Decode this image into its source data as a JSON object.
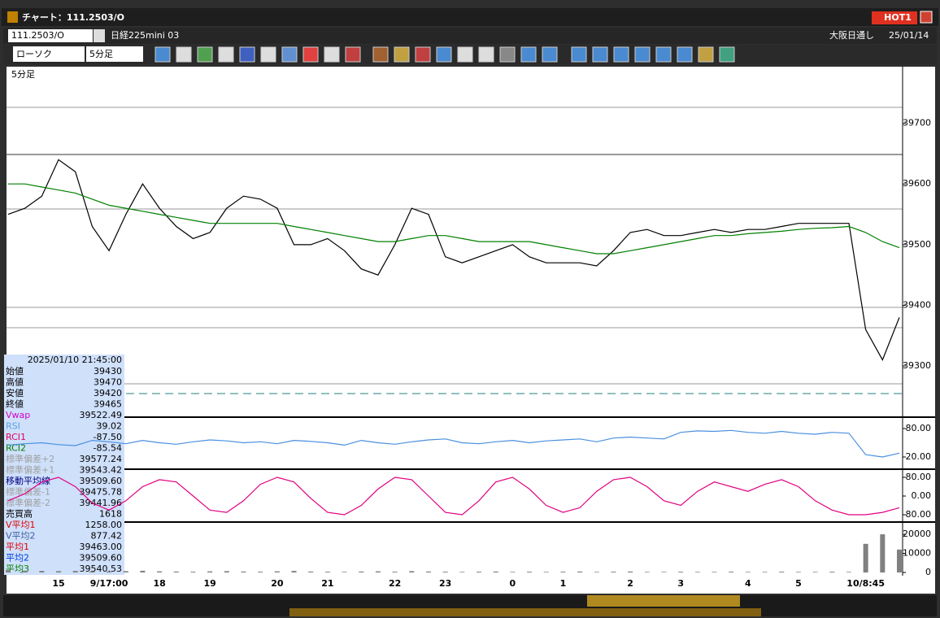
{
  "window": {
    "title": "チャート：111.2503/O",
    "hot": "HOT1"
  },
  "toolbar": {
    "symbol": "111.2503/O",
    "name": "日経225mini 03",
    "session": "大阪日通し",
    "date": "25/01/14",
    "chart_type": "ローソク",
    "interval": "5分足"
  },
  "info_panel": {
    "datetime": "2025/01/10 21:45:00",
    "rows": [
      {
        "label": "始値",
        "value": "39430",
        "color": "#000000"
      },
      {
        "label": "高値",
        "value": "39470",
        "color": "#000000"
      },
      {
        "label": "安値",
        "value": "39420",
        "color": "#000000"
      },
      {
        "label": "終値",
        "value": "39465",
        "color": "#000000"
      },
      {
        "label": "Vwap",
        "value": "39522.49",
        "color": "#d000d0"
      },
      {
        "label": "RSI",
        "value": "39.02",
        "color": "#5aa0e0"
      },
      {
        "label": "RCI1",
        "value": "-87.50",
        "color": "#e00060"
      },
      {
        "label": "RCI2",
        "value": "-85.54",
        "color": "#008000"
      },
      {
        "label": "標準偏差+2",
        "value": "39577.24",
        "color": "#a0a0a0"
      },
      {
        "label": "標準偏差+1",
        "value": "39543.42",
        "color": "#a0a0a0"
      },
      {
        "label": "移動平均線",
        "value": "39509.60",
        "color": "#000080"
      },
      {
        "label": "標準偏差-1",
        "value": "39475.78",
        "color": "#a0a0a0"
      },
      {
        "label": "標準偏差-2",
        "value": "39441.96",
        "color": "#a0a0a0"
      },
      {
        "label": "売買高",
        "value": "1618",
        "color": "#000000"
      },
      {
        "label": "V平均1",
        "value": "1258.00",
        "color": "#e00000"
      },
      {
        "label": "V平均2",
        "value": "877.42",
        "color": "#4060a0"
      },
      {
        "label": "平均1",
        "value": "39463.00",
        "color": "#e00000"
      },
      {
        "label": "平均2",
        "value": "39509.60",
        "color": "#0040e0"
      },
      {
        "label": "平均3",
        "value": "39540.53",
        "color": "#008000"
      }
    ]
  },
  "chart_data": [
    {
      "type": "line",
      "ylim": [
        39217,
        39792
      ],
      "yticks": [
        39300,
        39400,
        39500,
        39600,
        39700
      ],
      "categories": [
        null,
        null,
        null,
        "15",
        null,
        null,
        "9/17:00",
        null,
        null,
        "18",
        null,
        null,
        "19",
        null,
        null,
        null,
        "20",
        null,
        null,
        "21",
        null,
        null,
        null,
        "22",
        null,
        null,
        "23",
        null,
        null,
        null,
        "0",
        null,
        null,
        "1",
        null,
        null,
        null,
        "2",
        null,
        null,
        "3",
        null,
        null,
        null,
        "4",
        null,
        null,
        "5",
        null,
        null,
        null,
        "10/8:45",
        null,
        null
      ],
      "series": [
        {
          "color": "#000000",
          "values": [
            39550,
            39560,
            39580,
            39640,
            39620,
            39530,
            39490,
            39550,
            39600,
            39560,
            39530,
            39510,
            39520,
            39560,
            39580,
            39575,
            39560,
            39500,
            39500,
            39510,
            39490,
            39460,
            39450,
            39500,
            39560,
            39550,
            39480,
            39470,
            39480,
            39490,
            39500,
            39480,
            39470,
            39470,
            39470,
            39465,
            39490,
            39520,
            39525,
            39515,
            39515,
            39520,
            39525,
            39520,
            39525,
            39525,
            39530,
            39535,
            39535,
            39535,
            39535,
            39360,
            39310,
            39380
          ]
        },
        {
          "color": "#008000",
          "values": [
            39600,
            39600,
            39595,
            39590,
            39585,
            39575,
            39565,
            39560,
            39555,
            39550,
            39545,
            39540,
            39535,
            39535,
            39535,
            39535,
            39535,
            39530,
            39525,
            39520,
            39515,
            39510,
            39505,
            39505,
            39510,
            39515,
            39515,
            39510,
            39505,
            39505,
            39505,
            39505,
            39500,
            39495,
            39490,
            39485,
            39485,
            39490,
            39495,
            39500,
            39505,
            39510,
            39515,
            39515,
            39518,
            39520,
            39522,
            39525,
            39527,
            39528,
            39530,
            39520,
            39505,
            39495
          ]
        }
      ]
    },
    {
      "type": "line",
      "ylim": [
        -4,
        100.6
      ],
      "yticks": [
        {
          "value": 80,
          "label": "80.00"
        },
        {
          "value": 20,
          "label": "20.00"
        }
      ],
      "series": [
        {
          "color": "#4a90e0",
          "values": [
            45,
            48,
            50,
            46,
            44,
            55,
            52,
            48,
            55,
            50,
            47,
            52,
            56,
            54,
            50,
            52,
            48,
            55,
            53,
            50,
            45,
            55,
            50,
            47,
            52,
            56,
            58,
            50,
            48,
            52,
            55,
            50,
            54,
            56,
            58,
            52,
            60,
            62,
            60,
            58,
            72,
            75,
            74,
            76,
            72,
            70,
            74,
            70,
            68,
            72,
            70,
            25,
            20,
            28
          ]
        }
      ]
    },
    {
      "type": "line",
      "ylim": [
        -107.8,
        107.8
      ],
      "yticks": [
        {
          "value": 80,
          "label": "80.00"
        },
        {
          "value": 0,
          "label": "0.00"
        },
        {
          "value": -80,
          "label": "-80.00"
        }
      ],
      "series": [
        {
          "color": "#e00080",
          "values": [
            -20,
            10,
            60,
            80,
            40,
            -30,
            -60,
            -20,
            40,
            70,
            60,
            0,
            -60,
            -70,
            -20,
            50,
            80,
            60,
            -10,
            -70,
            -80,
            -40,
            30,
            80,
            70,
            0,
            -70,
            -80,
            -20,
            60,
            80,
            30,
            -40,
            -70,
            -50,
            20,
            70,
            80,
            40,
            -20,
            -40,
            20,
            60,
            40,
            20,
            50,
            70,
            40,
            -20,
            -60,
            -80,
            -80,
            -70,
            -50
          ]
        }
      ]
    },
    {
      "type": "bar",
      "ylim": [
        -850,
        26000
      ],
      "yticks": [
        20000,
        10000,
        0
      ],
      "color": "#808080",
      "values": [
        1200,
        900,
        800,
        700,
        800,
        600,
        500,
        700,
        900,
        600,
        500,
        400,
        600,
        700,
        500,
        400,
        600,
        800,
        500,
        400,
        300,
        500,
        600,
        400,
        700,
        500,
        400,
        300,
        400,
        500,
        300,
        400,
        300,
        400,
        500,
        300,
        400,
        500,
        300,
        300,
        400,
        300,
        300,
        400,
        300,
        300,
        400,
        300,
        300,
        400,
        300,
        15000,
        20000,
        12000
      ]
    }
  ]
}
